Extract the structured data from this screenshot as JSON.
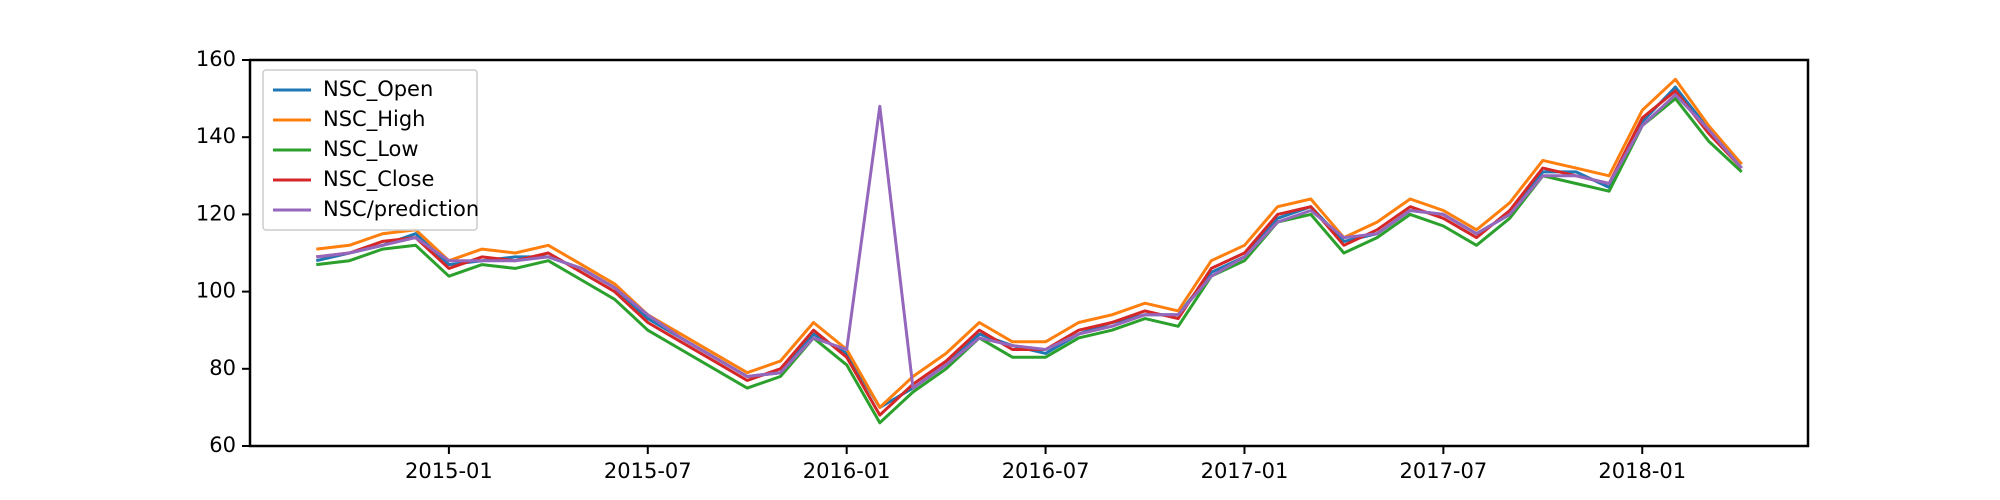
{
  "chart_data": {
    "type": "line",
    "x": [
      "2014-09",
      "2014-10",
      "2014-11",
      "2014-12",
      "2015-01",
      "2015-02",
      "2015-03",
      "2015-04",
      "2015-05",
      "2015-06",
      "2015-07",
      "2015-08",
      "2015-09",
      "2015-10",
      "2015-11",
      "2015-12",
      "2016-01",
      "2016-02",
      "2016-03",
      "2016-04",
      "2016-05",
      "2016-06",
      "2016-07",
      "2016-08",
      "2016-09",
      "2016-10",
      "2016-11",
      "2016-12",
      "2017-01",
      "2017-02",
      "2017-03",
      "2017-04",
      "2017-05",
      "2017-06",
      "2017-07",
      "2017-08",
      "2017-09",
      "2017-10",
      "2017-11",
      "2017-12",
      "2018-01",
      "2018-02",
      "2018-03",
      "2018-04"
    ],
    "series": [
      {
        "name": "NSC_Open",
        "color": "#1f77b4",
        "values": [
          108,
          110,
          112,
          115,
          107,
          108,
          109,
          109,
          106,
          101,
          93,
          88,
          83,
          78,
          79,
          89,
          84,
          70,
          75,
          81,
          89,
          86,
          84,
          89,
          92,
          94,
          94,
          105,
          109,
          119,
          122,
          113,
          115,
          121,
          120,
          115,
          120,
          131,
          131,
          127,
          144,
          153,
          142,
          133
        ]
      },
      {
        "name": "NSC_High",
        "color": "#ff7f0e",
        "values": [
          111,
          112,
          115,
          116,
          108,
          111,
          110,
          112,
          107,
          102,
          94,
          89,
          84,
          79,
          82,
          92,
          85,
          70,
          78,
          84,
          92,
          87,
          87,
          92,
          94,
          97,
          95,
          108,
          112,
          122,
          124,
          114,
          118,
          124,
          121,
          116,
          123,
          134,
          132,
          130,
          147,
          155,
          143,
          133
        ]
      },
      {
        "name": "NSC_Low",
        "color": "#2ca02c",
        "values": [
          107,
          108,
          111,
          112,
          104,
          107,
          106,
          108,
          103,
          98,
          90,
          85,
          80,
          75,
          78,
          88,
          81,
          66,
          74,
          80,
          88,
          83,
          83,
          88,
          90,
          93,
          91,
          104,
          108,
          118,
          120,
          110,
          114,
          120,
          117,
          112,
          119,
          130,
          128,
          126,
          143,
          150,
          139,
          131
        ]
      },
      {
        "name": "NSC_Close",
        "color": "#d62728",
        "values": [
          109,
          110,
          113,
          114,
          106,
          109,
          108,
          110,
          105,
          100,
          92,
          87,
          82,
          77,
          80,
          90,
          83,
          68,
          76,
          82,
          90,
          85,
          85,
          90,
          92,
          95,
          93,
          106,
          110,
          120,
          122,
          112,
          116,
          122,
          119,
          114,
          121,
          132,
          130,
          128,
          145,
          152,
          141,
          132
        ]
      },
      {
        "name": "NSC/prediction",
        "color": "#9467bd",
        "values": [
          109,
          110,
          112,
          114,
          108,
          108,
          108,
          109,
          106,
          101,
          94,
          88,
          83,
          78,
          79,
          88,
          85,
          148,
          75,
          81,
          88,
          86,
          85,
          89,
          91,
          94,
          94,
          104,
          109,
          118,
          121,
          114,
          115,
          121,
          120,
          115,
          120,
          130,
          130,
          128,
          143,
          151,
          142,
          132
        ]
      }
    ],
    "xlim": [
      "2014-07",
      "2018-06"
    ],
    "xticks": [
      "2015-01",
      "2015-07",
      "2016-01",
      "2016-07",
      "2017-01",
      "2017-07",
      "2018-01"
    ],
    "ylim": [
      60,
      160
    ],
    "yticks": [
      60,
      80,
      100,
      120,
      140,
      160
    ],
    "legend": "upper left"
  }
}
